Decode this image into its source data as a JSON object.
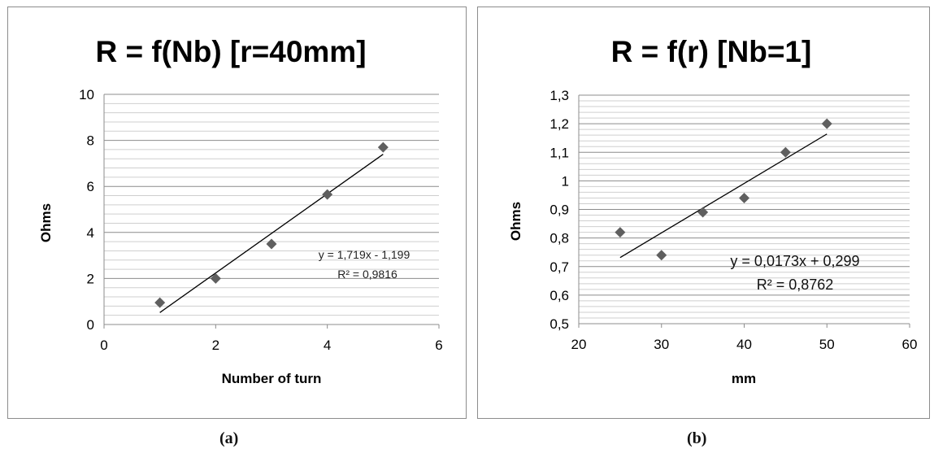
{
  "chart_data": [
    {
      "type": "scatter",
      "title": "R = f(Nb) [r=40mm]",
      "xlabel": "Number of turn",
      "ylabel": "Ohms",
      "xlim": [
        0,
        6
      ],
      "ylim": [
        0,
        10
      ],
      "xticks": [
        0,
        2,
        4,
        6
      ],
      "yticks": [
        0,
        2,
        4,
        6,
        8,
        10
      ],
      "xtick_labels": [
        "0",
        "2",
        "4",
        "6"
      ],
      "ytick_labels": [
        "0",
        "2",
        "4",
        "6",
        "8",
        "10"
      ],
      "points": [
        {
          "x": 1,
          "y": 0.95
        },
        {
          "x": 2,
          "y": 2.0
        },
        {
          "x": 3,
          "y": 3.5
        },
        {
          "x": 4,
          "y": 5.65
        },
        {
          "x": 5,
          "y": 7.7
        }
      ],
      "trendline": {
        "slope": 1.719,
        "intercept": -1.199,
        "from": 1,
        "to": 5,
        "equation": "y = 1,719x - 1,199",
        "r2": "R² = 0,9816"
      },
      "grid": true,
      "minor_grid": true,
      "caption": "(a)"
    },
    {
      "type": "scatter",
      "title": "R = f(r) [Nb=1]",
      "xlabel": "mm",
      "ylabel": "Ohms",
      "xlim": [
        20,
        60
      ],
      "ylim": [
        0.5,
        1.3
      ],
      "xticks": [
        20,
        30,
        40,
        50,
        60
      ],
      "yticks": [
        0.5,
        0.6,
        0.7,
        0.8,
        0.9,
        1.0,
        1.1,
        1.2,
        1.3
      ],
      "xtick_labels": [
        "20",
        "30",
        "40",
        "50",
        "60"
      ],
      "ytick_labels": [
        "0,5",
        "0,6",
        "0,7",
        "0,8",
        "0,9",
        "1",
        "1,1",
        "1,2",
        "1,3"
      ],
      "points": [
        {
          "x": 25,
          "y": 0.82
        },
        {
          "x": 30,
          "y": 0.74
        },
        {
          "x": 35,
          "y": 0.89
        },
        {
          "x": 40,
          "y": 0.94
        },
        {
          "x": 45,
          "y": 1.1
        },
        {
          "x": 50,
          "y": 1.2
        }
      ],
      "trendline": {
        "slope": 0.0173,
        "intercept": 0.299,
        "from": 25,
        "to": 50,
        "equation": "y = 0,0173x + 0,299",
        "r2": "R² = 0,8762"
      },
      "grid": true,
      "minor_grid": true,
      "caption": "(b)"
    }
  ],
  "colors": {
    "marker": "#5f5f5f",
    "grid": "#8c8c8c",
    "minor_grid": "#cfcfcf",
    "trendline": "#000000",
    "frame": "#8c8c8c"
  }
}
